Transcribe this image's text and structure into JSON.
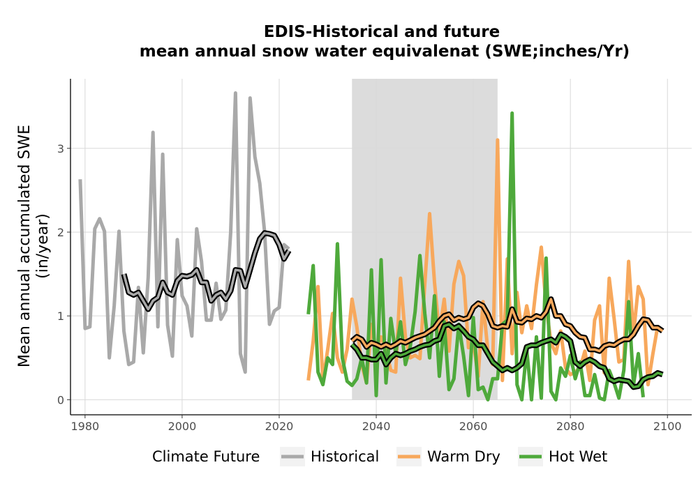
{
  "chart_data": {
    "type": "line",
    "title_line1": "EDIS-Historical and future",
    "title_line2": "mean annual snow water equivalenat (SWE;inches/Yr)",
    "ylabel_line1": "Mean annual accumulated SWE",
    "ylabel_line2": "(in/year)",
    "xlim": [
      1977,
      2105
    ],
    "ylim": [
      -0.18,
      3.83
    ],
    "x_ticks": [
      "1980",
      "2000",
      "2020",
      "2040",
      "2060",
      "2080",
      "2100"
    ],
    "y_ticks": [
      "0",
      "1",
      "2",
      "3"
    ],
    "grid": true,
    "shaded_period": [
      2035,
      2065
    ],
    "legend": {
      "title": "Climate Future",
      "position": "bottom",
      "entries": [
        {
          "label": "Historical",
          "color": "#a9a9a9"
        },
        {
          "label": "Warm Dry",
          "color": "#f7a85c"
        },
        {
          "label": "Hot Wet",
          "color": "#4ea93b"
        }
      ]
    },
    "series": [
      {
        "name": "Historical",
        "color": "#a9a9a9",
        "x_start": 1979,
        "values": [
          2.63,
          0.85,
          0.87,
          2.04,
          2.16,
          2.01,
          0.5,
          1.12,
          2.01,
          0.82,
          0.42,
          0.45,
          1.34,
          0.56,
          1.46,
          3.19,
          0.87,
          2.93,
          0.89,
          0.52,
          1.91,
          1.24,
          1.12,
          0.76,
          2.04,
          1.65,
          0.95,
          0.95,
          1.39,
          0.96,
          1.07,
          2.0,
          3.66,
          0.55,
          0.33,
          3.6,
          2.9,
          2.58,
          2.0,
          0.9,
          1.06,
          1.1,
          1.85,
          1.8
        ],
        "smooth_x_start": 1988,
        "smooth": [
          1.5,
          1.28,
          1.25,
          1.28,
          1.18,
          1.08,
          1.18,
          1.22,
          1.4,
          1.28,
          1.25,
          1.42,
          1.48,
          1.47,
          1.49,
          1.55,
          1.4,
          1.4,
          1.18,
          1.25,
          1.28,
          1.2,
          1.3,
          1.55,
          1.54,
          1.35,
          1.55,
          1.75,
          1.92,
          1.99,
          1.98,
          1.96,
          1.85,
          1.68,
          1.78
        ]
      },
      {
        "name": "Warm Dry",
        "color": "#f7a85c",
        "x_start": 2026,
        "values": [
          0.23,
          0.7,
          1.35,
          0.22,
          0.6,
          1.03,
          0.5,
          0.33,
          0.6,
          1.2,
          0.87,
          0.42,
          0.2,
          0.9,
          0.58,
          0.75,
          0.6,
          0.35,
          0.33,
          1.45,
          0.75,
          0.5,
          0.53,
          0.49,
          1.38,
          2.22,
          1.4,
          0.8,
          1.2,
          0.58,
          1.38,
          1.65,
          1.48,
          0.62,
          0.68,
          0.28,
          1.17,
          0.58,
          0.42,
          3.1,
          0.23,
          1.68,
          0.55,
          1.28,
          0.8,
          1.12,
          0.85,
          1.37,
          1.82,
          1.12,
          0.68,
          0.55,
          0.82,
          0.38,
          0.3,
          0.33,
          0.38,
          0.58,
          0.23,
          0.95,
          1.12,
          0.32,
          1.45,
          0.97,
          0.45,
          0.48,
          1.65,
          0.78,
          1.35,
          1.2,
          0.18,
          0.55,
          0.88
        ],
        "smooth_x_start": 2035,
        "smooth": [
          0.7,
          0.75,
          0.72,
          0.63,
          0.68,
          0.66,
          0.63,
          0.66,
          0.63,
          0.66,
          0.7,
          0.68,
          0.71,
          0.74,
          0.76,
          0.78,
          0.82,
          0.86,
          0.94,
          1.0,
          1.02,
          0.95,
          0.98,
          0.96,
          0.98,
          1.1,
          1.15,
          1.12,
          1.02,
          0.88,
          0.86,
          0.88,
          0.87,
          1.08,
          0.93,
          0.92,
          0.97,
          0.96,
          1.0,
          0.98,
          1.05,
          1.2,
          1.0,
          1.0,
          0.9,
          0.88,
          0.8,
          0.75,
          0.74,
          0.6,
          0.6,
          0.58,
          0.64,
          0.66,
          0.65,
          0.69,
          0.72,
          0.72,
          0.78,
          0.88,
          0.96,
          0.95,
          0.86,
          0.86,
          0.82
        ]
      },
      {
        "name": "Hot Wet",
        "color": "#4ea93b",
        "x_start": 2026,
        "values": [
          1.02,
          1.6,
          0.33,
          0.18,
          0.5,
          0.42,
          1.86,
          0.5,
          0.22,
          0.17,
          0.25,
          0.5,
          0.2,
          1.55,
          0.05,
          1.67,
          0.2,
          0.97,
          0.55,
          0.93,
          0.42,
          0.63,
          1.05,
          1.72,
          1.03,
          0.5,
          1.24,
          0.28,
          0.93,
          0.12,
          0.25,
          0.9,
          0.52,
          0.05,
          0.98,
          0.12,
          0.15,
          0.0,
          0.25,
          0.25,
          0.9,
          0.95,
          3.42,
          0.18,
          0.0,
          0.6,
          0.0,
          0.75,
          0.02,
          1.69,
          0.1,
          0.0,
          0.38,
          0.28,
          0.53,
          0.25,
          0.45,
          0.05,
          0.05,
          0.3,
          0.02,
          0.0,
          0.35,
          0.2,
          0.02,
          0.35,
          1.17,
          0.18,
          0.55,
          0.03
        ],
        "smooth_x_start": 2035,
        "smooth": [
          0.66,
          0.6,
          0.5,
          0.5,
          0.48,
          0.48,
          0.55,
          0.42,
          0.5,
          0.55,
          0.53,
          0.55,
          0.58,
          0.6,
          0.63,
          0.65,
          0.66,
          0.7,
          0.72,
          0.88,
          0.9,
          0.85,
          0.88,
          0.82,
          0.75,
          0.72,
          0.65,
          0.65,
          0.55,
          0.45,
          0.4,
          0.35,
          0.38,
          0.35,
          0.38,
          0.43,
          0.63,
          0.65,
          0.65,
          0.68,
          0.7,
          0.72,
          0.68,
          0.78,
          0.75,
          0.7,
          0.45,
          0.4,
          0.45,
          0.48,
          0.45,
          0.4,
          0.38,
          0.25,
          0.22,
          0.24,
          0.23,
          0.22,
          0.15,
          0.16,
          0.24,
          0.27,
          0.28,
          0.32,
          0.3
        ]
      }
    ]
  }
}
